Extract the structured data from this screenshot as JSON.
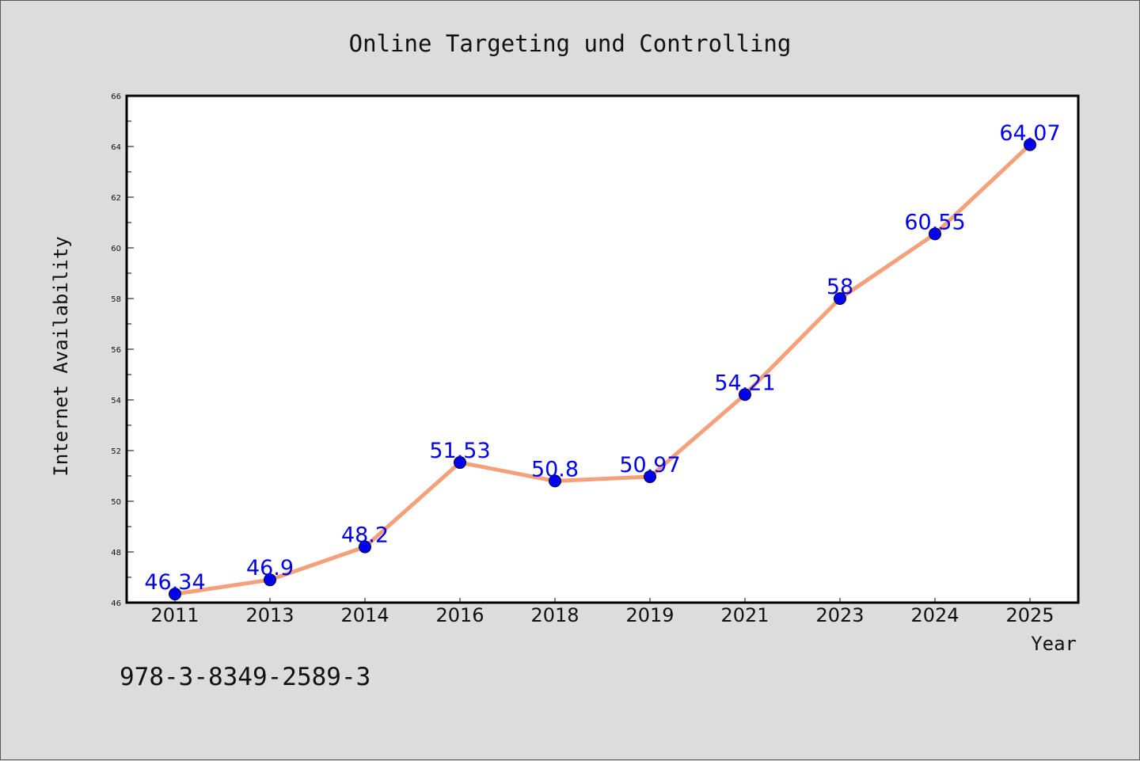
{
  "figure": {
    "background": "#dcdcdc",
    "footnote": "978-3-8349-2589-3"
  },
  "chart_data": {
    "type": "line",
    "title": "Online Targeting und Controlling",
    "xlabel": "Year",
    "ylabel": "Internet Availability",
    "categories": [
      "2011",
      "2013",
      "2014",
      "2016",
      "2018",
      "2019",
      "2021",
      "2023",
      "2024",
      "2025"
    ],
    "series": [
      {
        "values": [
          46.34,
          46.9,
          48.2,
          51.53,
          50.8,
          50.97,
          54.21,
          58,
          60.55,
          64.07
        ],
        "data_labels": [
          "46.34",
          "46.9",
          "48.2",
          "51.53",
          "50.8",
          "50.97",
          "54.21",
          "58",
          "60.55",
          "64.07"
        ],
        "line_color": "#f4a07a",
        "marker_color": "#0000ee",
        "label_color": "#0000ee"
      }
    ],
    "ylim": [
      46,
      66
    ],
    "yticks": [
      "46",
      "48",
      "50",
      "52",
      "54",
      "56",
      "58",
      "60",
      "62",
      "64",
      "66"
    ],
    "grid": false,
    "legend": "none"
  }
}
